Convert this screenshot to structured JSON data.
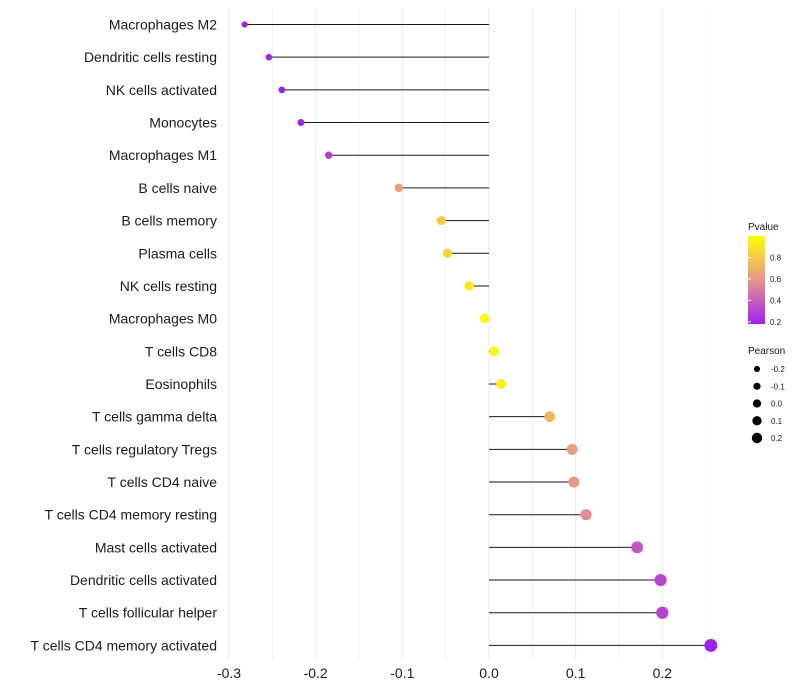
{
  "chart_data": {
    "type": "lollipop",
    "title": "",
    "xlabel": "",
    "ylabel": "",
    "xlim": [
      -0.3,
      0.26
    ],
    "x_ticks": [
      -0.3,
      -0.2,
      -0.1,
      0.0,
      0.1,
      0.2
    ],
    "x_tick_labels": [
      "-0.3",
      "-0.2",
      "-0.1",
      "0.0",
      "0.1",
      "0.2"
    ],
    "grid": true,
    "categories": [
      "Macrophages M2",
      "Dendritic cells resting",
      "NK cells activated",
      "Monocytes",
      "Macrophages M1",
      "B cells naive",
      "B cells memory",
      "Plasma cells",
      "NK cells resting",
      "Macrophages M0",
      "T cells CD8",
      "Eosinophils",
      "T cells gamma delta",
      "T cells regulatory  Tregs",
      "T cells CD4 naive",
      "T cells CD4 memory resting",
      "Mast cells activated",
      "Dendritic cells activated",
      "T cells follicular helper",
      "T cells CD4 memory activated"
    ],
    "pearson": [
      -0.282,
      -0.254,
      -0.239,
      -0.217,
      -0.185,
      -0.104,
      -0.055,
      -0.048,
      -0.023,
      -0.005,
      0.006,
      0.014,
      0.07,
      0.096,
      0.098,
      0.112,
      0.171,
      0.198,
      0.2,
      0.256
    ],
    "pvalue": [
      0.06,
      0.11,
      0.12,
      0.19,
      0.29,
      0.63,
      0.81,
      0.83,
      0.92,
      0.98,
      0.97,
      0.94,
      0.72,
      0.62,
      0.61,
      0.56,
      0.38,
      0.31,
      0.3,
      0.16
    ],
    "legend_pvalue": {
      "title": "Pvalue",
      "range": [
        0.18,
        1.0
      ],
      "ticks": [
        0.2,
        0.4,
        0.6,
        0.8
      ],
      "tick_labels": [
        "0.2",
        "0.4",
        "0.6",
        "0.8"
      ],
      "color_low": "#a020f0",
      "color_mid": "#e8958a",
      "color_high": "#ffff00"
    },
    "legend_pearson": {
      "title": "Pearson",
      "values": [
        -0.2,
        -0.1,
        0.0,
        0.1,
        0.2
      ],
      "labels": [
        "-0.2",
        "-0.1",
        "0.0",
        "0.1",
        "0.2"
      ]
    },
    "legend_placement": "right"
  }
}
